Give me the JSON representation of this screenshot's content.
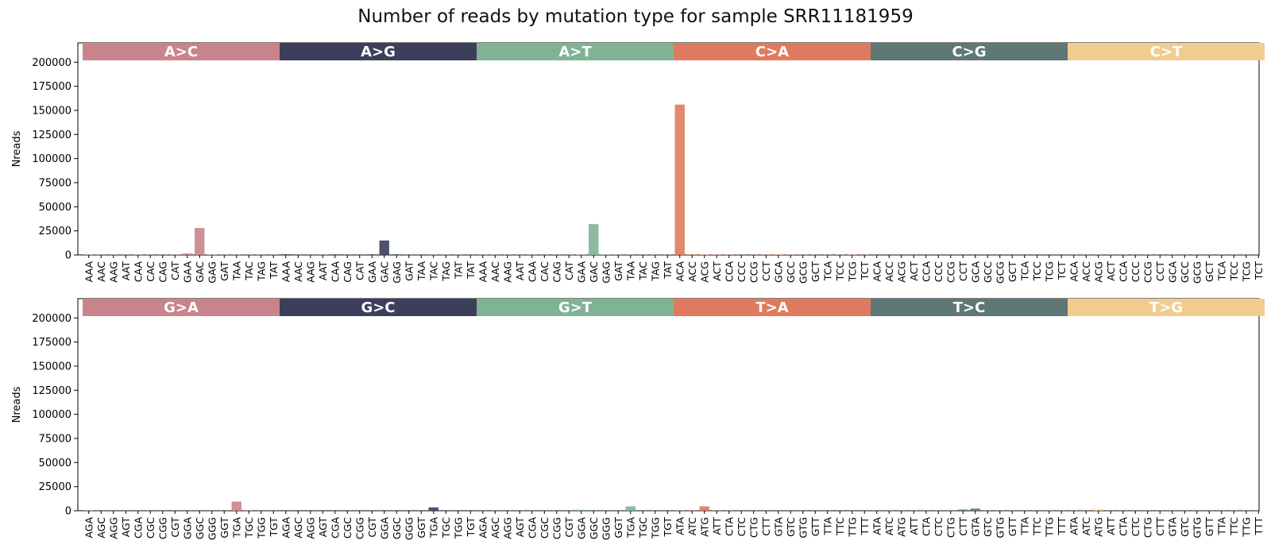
{
  "chart_data": {
    "title": "Number of reads by mutation type for sample SRR11181959",
    "colors": [
      "#c9848b",
      "#3c3f5b",
      "#80b396",
      "#e07a5f",
      "#5e7777",
      "#f2cc8f"
    ],
    "panels": [
      {
        "type": "bar",
        "ylabel": "Nreads",
        "ylim": [
          0,
          220000
        ],
        "yticks": [
          "0",
          "25000",
          "50000",
          "75000",
          "100000",
          "125000",
          "150000",
          "175000",
          "200000"
        ],
        "groups": [
          {
            "label": "A>C",
            "categories": [
              "AAA",
              "AAC",
              "AAG",
              "AAT",
              "CAA",
              "CAC",
              "CAG",
              "CAT",
              "GAA",
              "GAC",
              "GAG",
              "GAT",
              "TAA",
              "TAC",
              "TAG",
              "TAT"
            ],
            "values": [
              300,
              200,
              200,
              150,
              300,
              200,
              200,
              200,
              1500,
              28000,
              300,
              200,
              200,
              150,
              200,
              150
            ]
          },
          {
            "label": "A>G",
            "categories": [
              "AAA",
              "AAC",
              "AAG",
              "AAT",
              "CAA",
              "CAG",
              "CAT",
              "GAA",
              "GAC",
              "GAG",
              "GAT",
              "TAA",
              "TAC",
              "TAG",
              "TAT",
              "TAT"
            ],
            "values": [
              700,
              500,
              500,
              400,
              600,
              500,
              500,
              600,
              15000,
              600,
              500,
              500,
              400,
              400,
              400,
              300
            ]
          },
          {
            "label": "A>T",
            "categories": [
              "AAA",
              "AAC",
              "AAG",
              "AAT",
              "CAA",
              "CAC",
              "CAG",
              "CAT",
              "GAA",
              "GAC",
              "GAG",
              "GAT",
              "TAA",
              "TAC",
              "TAG",
              "TAT"
            ],
            "values": [
              200,
              200,
              150,
              150,
              200,
              150,
              150,
              150,
              300,
              32000,
              300,
              200,
              200,
              150,
              150,
              150
            ]
          },
          {
            "label": "C>A",
            "categories": [
              "ACA",
              "ACC",
              "ACG",
              "ACT",
              "CCA",
              "CCC",
              "CCG",
              "CCT",
              "GCA",
              "GCC",
              "GCG",
              "GCT",
              "TCA",
              "TCC",
              "TCG",
              "TCT"
            ],
            "values": [
              156000,
              600,
              400,
              300,
              300,
              200,
              200,
              300,
              500,
              300,
              200,
              200,
              200,
              200,
              300,
              200
            ]
          },
          {
            "label": "C>G",
            "categories": [
              "ACA",
              "ACC",
              "ACG",
              "ACT",
              "CCA",
              "CCC",
              "CCG",
              "CCT",
              "GCA",
              "GCC",
              "GCG",
              "GCT",
              "TCA",
              "TCC",
              "TCG",
              "TCT"
            ],
            "values": [
              100,
              100,
              100,
              100,
              100,
              100,
              100,
              100,
              100,
              100,
              100,
              100,
              100,
              100,
              100,
              100
            ]
          },
          {
            "label": "C>T",
            "categories": [
              "ACA",
              "ACC",
              "ACG",
              "ACT",
              "CCA",
              "CCC",
              "CCG",
              "CCT",
              "GCA",
              "GCC",
              "GCG",
              "GCT",
              "TCA",
              "TCC",
              "TCG",
              "TCT"
            ],
            "values": [
              100,
              100,
              100,
              100,
              100,
              100,
              100,
              100,
              100,
              100,
              100,
              100,
              100,
              100,
              100,
              100
            ]
          }
        ]
      },
      {
        "type": "bar",
        "ylabel": "Nreads",
        "ylim": [
          0,
          220000
        ],
        "yticks": [
          "0",
          "25000",
          "50000",
          "75000",
          "100000",
          "125000",
          "150000",
          "175000",
          "200000"
        ],
        "groups": [
          {
            "label": "G>A",
            "categories": [
              "AGA",
              "AGC",
              "AGG",
              "AGT",
              "CGA",
              "CGC",
              "CGG",
              "CGT",
              "GGA",
              "GGC",
              "GGG",
              "GGT",
              "TGA",
              "TGC",
              "TGG",
              "TGT"
            ],
            "values": [
              300,
              100,
              100,
              100,
              100,
              100,
              100,
              100,
              100,
              100,
              100,
              100,
              9500,
              200,
              100,
              100
            ]
          },
          {
            "label": "G>C",
            "categories": [
              "AGA",
              "AGC",
              "AGG",
              "AGT",
              "CGA",
              "CGC",
              "CGG",
              "CGT",
              "GGA",
              "GGC",
              "GGG",
              "GGT",
              "TGA",
              "TGC",
              "TGG",
              "TGT"
            ],
            "values": [
              100,
              100,
              100,
              100,
              100,
              100,
              100,
              100,
              100,
              100,
              100,
              100,
              3500,
              100,
              100,
              100
            ]
          },
          {
            "label": "G>T",
            "categories": [
              "AGA",
              "AGC",
              "AGG",
              "AGT",
              "CGA",
              "CGC",
              "CGG",
              "CGT",
              "GGA",
              "GGC",
              "GGG",
              "GGT",
              "TGA",
              "TGC",
              "TGG",
              "TGT"
            ],
            "values": [
              100,
              100,
              100,
              100,
              100,
              100,
              100,
              100,
              1000,
              100,
              100,
              100,
              4500,
              100,
              100,
              100
            ]
          },
          {
            "label": "T>A",
            "categories": [
              "ATA",
              "ATC",
              "ATG",
              "ATT",
              "CTA",
              "CTC",
              "CTG",
              "CTT",
              "GTA",
              "GTC",
              "GTG",
              "GTT",
              "TTA",
              "TTC",
              "TTG",
              "TTT"
            ],
            "values": [
              200,
              200,
              4500,
              200,
              200,
              100,
              100,
              100,
              100,
              100,
              100,
              100,
              100,
              100,
              100,
              100
            ]
          },
          {
            "label": "T>C",
            "categories": [
              "ATA",
              "ATC",
              "ATG",
              "ATT",
              "CTA",
              "CTC",
              "CTG",
              "CTT",
              "GTA",
              "GTC",
              "GTG",
              "GTT",
              "TTA",
              "TTC",
              "TTG",
              "TTT"
            ],
            "values": [
              200,
              200,
              200,
              200,
              200,
              200,
              200,
              1200,
              2200,
              200,
              200,
              200,
              200,
              200,
              200,
              200
            ]
          },
          {
            "label": "T>G",
            "categories": [
              "ATA",
              "ATC",
              "ATG",
              "ATT",
              "CTA",
              "CTC",
              "CTG",
              "CTT",
              "GTA",
              "GTC",
              "GTG",
              "GTT",
              "TTA",
              "TTC",
              "TTG",
              "TTT"
            ],
            "values": [
              100,
              100,
              1500,
              100,
              100,
              100,
              100,
              100,
              100,
              100,
              100,
              100,
              100,
              100,
              100,
              100
            ]
          }
        ]
      }
    ]
  }
}
